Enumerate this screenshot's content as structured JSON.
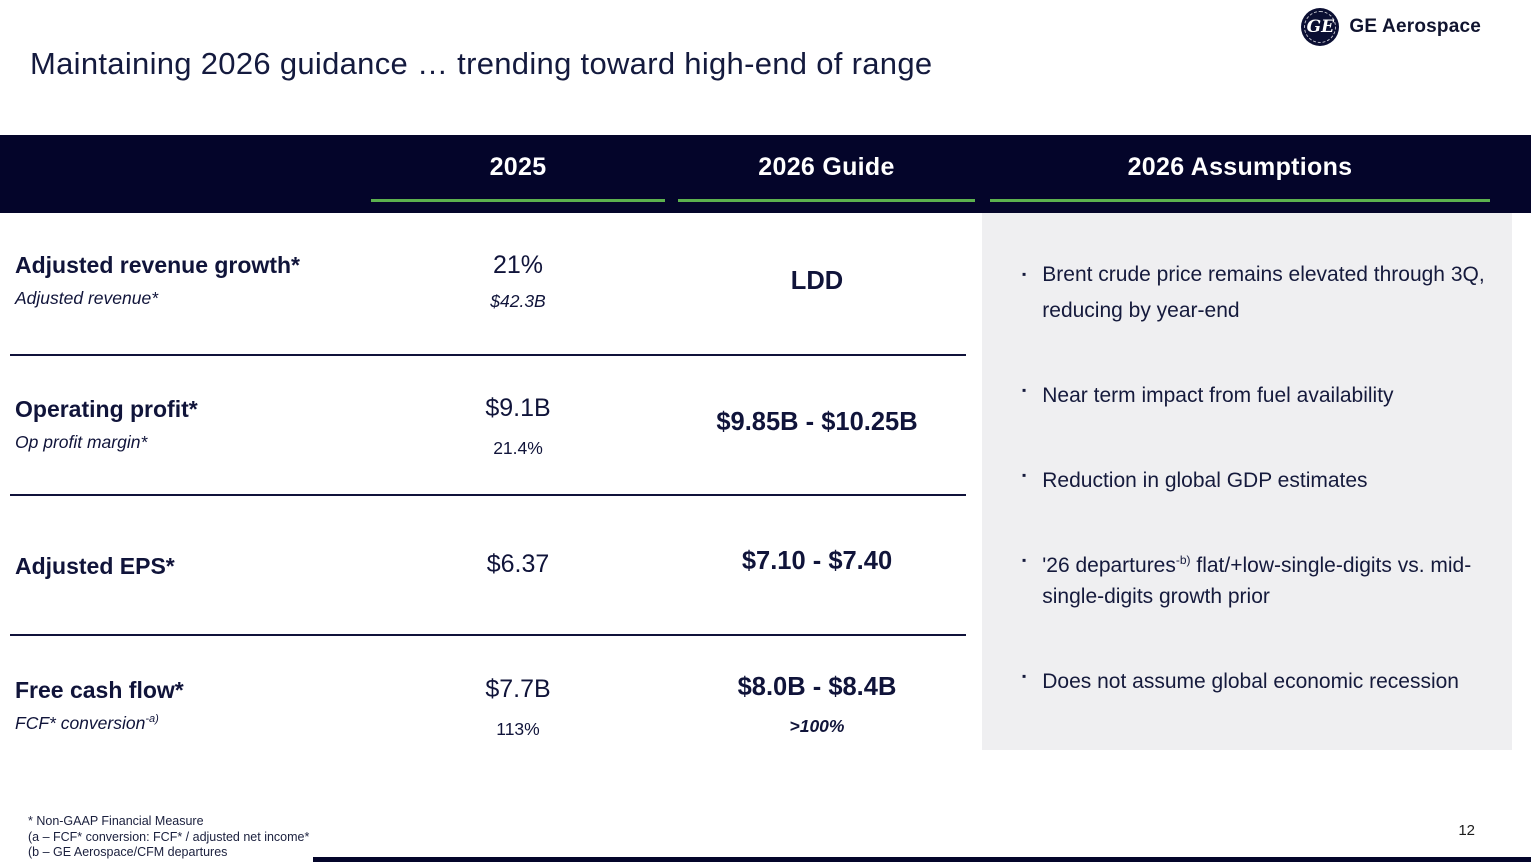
{
  "slide": {
    "title": "Maintaining 2026 guidance … trending toward high-end of range",
    "page_number": "12"
  },
  "logo": {
    "monogram": "GE",
    "brand": "GE Aerospace"
  },
  "table": {
    "columns": {
      "c2025": "2025",
      "guide": "2026 Guide",
      "assumptions": "2026 Assumptions"
    },
    "rows": [
      {
        "label": "Adjusted revenue growth*",
        "sublabel_pre": "Adjusted revenue*",
        "sublabel_sup": "",
        "value_2025": "21%",
        "value_2025_sub": "$42.3B",
        "guide": "LDD",
        "guide_sub": ""
      },
      {
        "label": "Operating profit*",
        "sublabel_pre": "Op profit margin*",
        "sublabel_sup": "",
        "value_2025": "$9.1B",
        "value_2025_sub": "21.4%",
        "guide": "$9.85B - $10.25B",
        "guide_sub": ""
      },
      {
        "label": "Adjusted EPS*",
        "sublabel_pre": "",
        "sublabel_sup": "",
        "value_2025": "$6.37",
        "value_2025_sub": "",
        "guide": "$7.10 - $7.40",
        "guide_sub": ""
      },
      {
        "label": "Free cash flow*",
        "sublabel_pre": "FCF* conversion",
        "sublabel_sup": "-a)",
        "value_2025": "$7.7B",
        "value_2025_sub": "113%",
        "guide": "$8.0B - $8.4B",
        "guide_sub": ">100%"
      }
    ]
  },
  "assumptions": {
    "bullet_glyph": "▪",
    "bullets": [
      {
        "pre": "Brent crude price remains elevated through 3Q, reducing by year-end",
        "sup": "",
        "post": ""
      },
      {
        "pre": "Near term impact from fuel availability",
        "sup": "",
        "post": ""
      },
      {
        "pre": "Reduction in global GDP estimates",
        "sup": "",
        "post": ""
      },
      {
        "pre": "'26 departures",
        "sup": "-b)",
        "post": " flat/+low-single-digits vs. mid-single-digits growth prior"
      },
      {
        "pre": "Does not assume global economic recession",
        "sup": "",
        "post": ""
      }
    ]
  },
  "footnotes": {
    "line1": "* Non-GAAP Financial Measure",
    "line2": "(a – FCF* conversion: FCF* / adjusted net income*",
    "line3": "(b – GE Aerospace/CFM departures"
  },
  "colors": {
    "header_bar": "#04052a",
    "accent_green": "#5cb14e",
    "text_navy": "#141a3e",
    "panel_gray": "#efeff1"
  }
}
